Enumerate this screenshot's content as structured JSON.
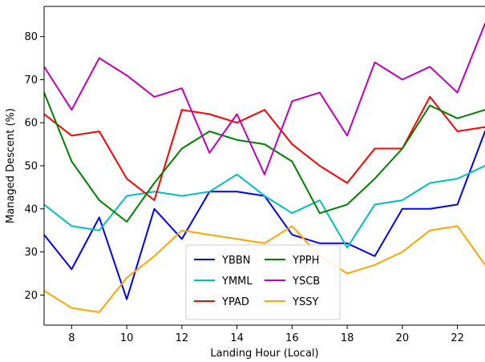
{
  "chart_data": {
    "type": "line",
    "title": "",
    "xlabel": "Landing Hour (Local)",
    "ylabel": "Managed Descent (%)",
    "xlim": [
      7,
      23
    ],
    "ylim": [
      13,
      87
    ],
    "xticks": [
      8,
      10,
      12,
      14,
      16,
      18,
      20,
      22
    ],
    "yticks": [
      20,
      30,
      40,
      50,
      60,
      70,
      80
    ],
    "grid": false,
    "legend_position": "bottom-center",
    "legend_columns": 2,
    "x": [
      7,
      8,
      9,
      10,
      11,
      12,
      13,
      14,
      15,
      16,
      17,
      18,
      19,
      20,
      21,
      22,
      23
    ],
    "series": [
      {
        "name": "YBBN",
        "color": "#0000ff",
        "values": [
          34,
          26,
          38,
          19,
          40,
          33,
          44,
          44,
          43,
          34,
          32,
          32,
          29,
          40,
          40,
          41,
          58
        ]
      },
      {
        "name": "YMML",
        "color": "#00bfbf",
        "values": [
          41,
          36,
          35,
          43,
          44,
          43,
          44,
          48,
          43,
          39,
          42,
          31,
          41,
          42,
          46,
          47,
          50
        ]
      },
      {
        "name": "YPAD",
        "color": "#ff0000",
        "values": [
          62,
          57,
          58,
          47,
          42,
          63,
          62,
          60,
          63,
          55,
          50,
          46,
          54,
          54,
          66,
          58,
          59
        ]
      },
      {
        "name": "YPPH",
        "color": "#008000",
        "values": [
          67,
          51,
          42,
          37,
          46,
          54,
          58,
          56,
          55,
          51,
          39,
          41,
          47,
          54,
          64,
          61,
          63
        ]
      },
      {
        "name": "YSCB",
        "color": "#bf00bf",
        "values": [
          73,
          63,
          75,
          71,
          66,
          68,
          53,
          62,
          48,
          65,
          67,
          57,
          74,
          70,
          73,
          67,
          83
        ]
      },
      {
        "name": "YSSY",
        "color": "#ffa500",
        "values": [
          21,
          17,
          16,
          24,
          29,
          35,
          34,
          33,
          32,
          36,
          29,
          25,
          27,
          30,
          35,
          36,
          27
        ]
      }
    ]
  }
}
